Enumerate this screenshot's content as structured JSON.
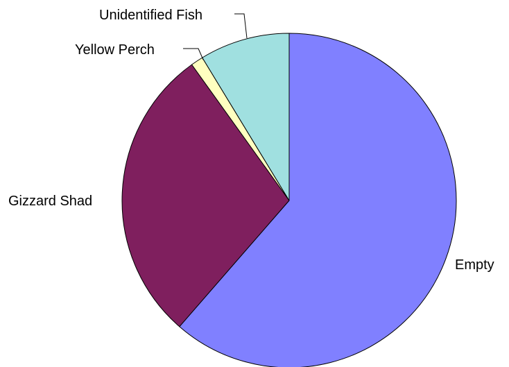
{
  "chart_data": {
    "type": "pie",
    "title": "",
    "categories": [
      "Empty",
      "Gizzard Shad",
      "Yellow Perch",
      "Unidentified Fish"
    ],
    "values": [
      61.4,
      28.7,
      1.2,
      8.7
    ],
    "unit": "%",
    "start_angle_deg": 0,
    "direction": "clockwise",
    "colors": [
      "#8080ff",
      "#7f1f5e",
      "#ffffc0",
      "#a0e0e0"
    ],
    "legend": "none",
    "labels": {
      "empty": "Empty",
      "gizzard_shad": "Gizzard Shad",
      "yellow_perch": "Yellow Perch",
      "unidentified_fish": "Unidentified Fish"
    }
  }
}
